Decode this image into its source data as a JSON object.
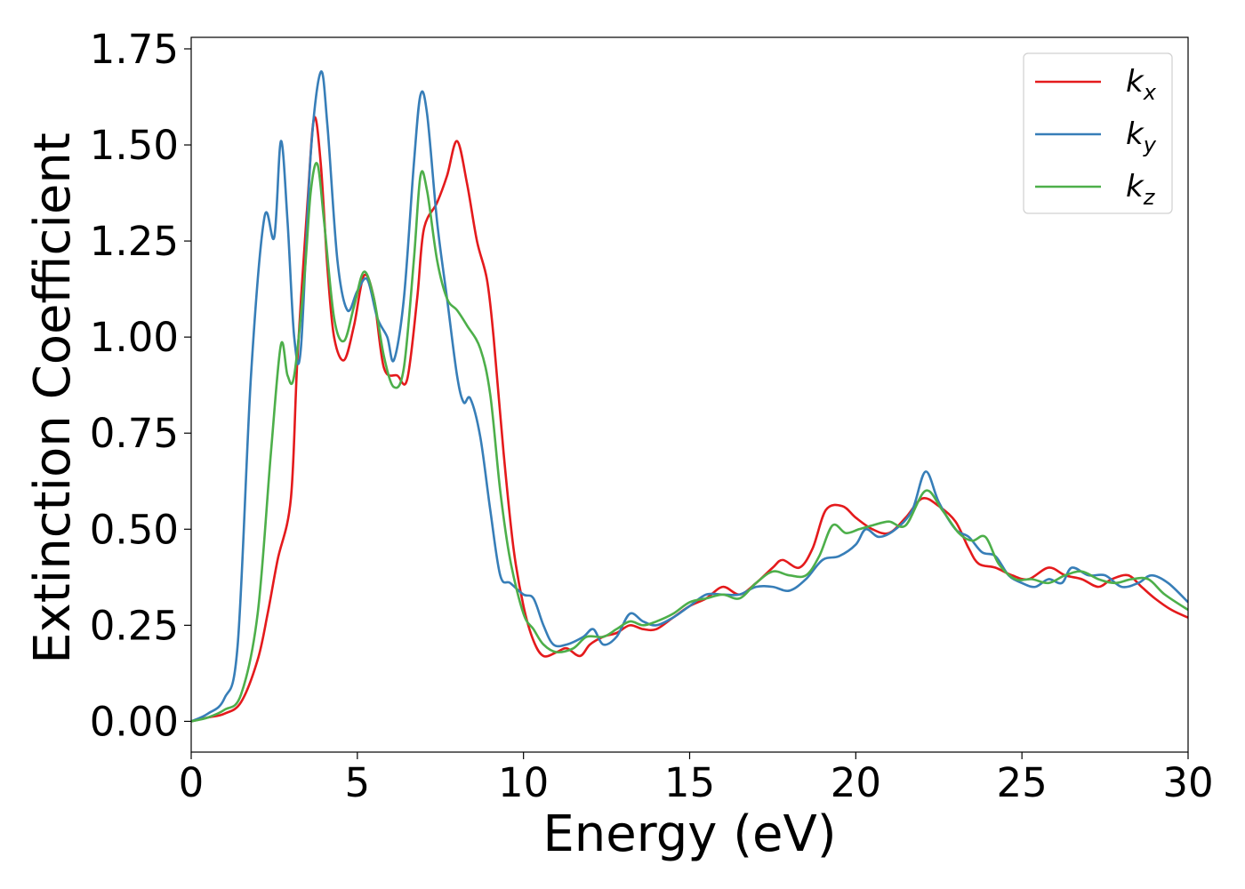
{
  "chart_data": {
    "type": "line",
    "xlabel": "Energy (eV)",
    "ylabel": "Extinction Coefficient",
    "xlim": [
      0,
      30
    ],
    "ylim": [
      -0.08,
      1.78
    ],
    "xticks": [
      0,
      5,
      10,
      15,
      20,
      25,
      30
    ],
    "xtick_labels": [
      "0",
      "5",
      "10",
      "15",
      "20",
      "25",
      "30"
    ],
    "yticks": [
      0,
      0.25,
      0.5,
      0.75,
      1.0,
      1.25,
      1.5,
      1.75
    ],
    "ytick_labels": [
      "0.00",
      "0.25",
      "0.50",
      "0.75",
      "1.00",
      "1.25",
      "1.50",
      "1.75"
    ],
    "grid": false,
    "legend_position": "top-right",
    "series": [
      {
        "name": "k",
        "subscript": "x",
        "color": "#e41a1c",
        "points": [
          [
            0,
            0
          ],
          [
            0.5,
            0.01
          ],
          [
            1.0,
            0.02
          ],
          [
            1.5,
            0.05
          ],
          [
            2.0,
            0.16
          ],
          [
            2.3,
            0.28
          ],
          [
            2.6,
            0.42
          ],
          [
            3.0,
            0.58
          ],
          [
            3.2,
            0.95
          ],
          [
            3.5,
            1.35
          ],
          [
            3.7,
            1.57
          ],
          [
            3.9,
            1.45
          ],
          [
            4.1,
            1.18
          ],
          [
            4.3,
            1.0
          ],
          [
            4.6,
            0.94
          ],
          [
            4.9,
            1.03
          ],
          [
            5.2,
            1.16
          ],
          [
            5.5,
            1.1
          ],
          [
            5.8,
            0.92
          ],
          [
            6.2,
            0.9
          ],
          [
            6.5,
            0.89
          ],
          [
            6.8,
            1.1
          ],
          [
            7.0,
            1.28
          ],
          [
            7.4,
            1.35
          ],
          [
            7.7,
            1.42
          ],
          [
            8.0,
            1.51
          ],
          [
            8.3,
            1.4
          ],
          [
            8.6,
            1.25
          ],
          [
            8.9,
            1.15
          ],
          [
            9.1,
            1.0
          ],
          [
            9.4,
            0.7
          ],
          [
            9.7,
            0.45
          ],
          [
            10.0,
            0.3
          ],
          [
            10.3,
            0.21
          ],
          [
            10.6,
            0.17
          ],
          [
            11.0,
            0.18
          ],
          [
            11.3,
            0.19
          ],
          [
            11.7,
            0.17
          ],
          [
            12.0,
            0.2
          ],
          [
            12.4,
            0.22
          ],
          [
            12.8,
            0.23
          ],
          [
            13.2,
            0.25
          ],
          [
            13.6,
            0.24
          ],
          [
            14.0,
            0.24
          ],
          [
            14.5,
            0.27
          ],
          [
            15.0,
            0.3
          ],
          [
            15.5,
            0.32
          ],
          [
            16.0,
            0.35
          ],
          [
            16.5,
            0.33
          ],
          [
            17.0,
            0.36
          ],
          [
            17.5,
            0.4
          ],
          [
            17.8,
            0.42
          ],
          [
            18.3,
            0.4
          ],
          [
            18.7,
            0.45
          ],
          [
            19.1,
            0.55
          ],
          [
            19.6,
            0.56
          ],
          [
            20.0,
            0.53
          ],
          [
            20.5,
            0.5
          ],
          [
            21.0,
            0.49
          ],
          [
            21.5,
            0.53
          ],
          [
            22.0,
            0.58
          ],
          [
            22.5,
            0.56
          ],
          [
            23.0,
            0.52
          ],
          [
            23.4,
            0.45
          ],
          [
            23.7,
            0.41
          ],
          [
            24.2,
            0.4
          ],
          [
            24.7,
            0.38
          ],
          [
            25.2,
            0.37
          ],
          [
            25.8,
            0.4
          ],
          [
            26.3,
            0.38
          ],
          [
            26.8,
            0.37
          ],
          [
            27.3,
            0.35
          ],
          [
            27.7,
            0.37
          ],
          [
            28.2,
            0.38
          ],
          [
            28.6,
            0.35
          ],
          [
            29.0,
            0.32
          ],
          [
            29.5,
            0.29
          ],
          [
            30.0,
            0.27
          ]
        ]
      },
      {
        "name": "k",
        "subscript": "y",
        "color": "#377eb8",
        "points": [
          [
            0,
            0
          ],
          [
            0.5,
            0.02
          ],
          [
            1.0,
            0.06
          ],
          [
            1.4,
            0.2
          ],
          [
            1.8,
            0.9
          ],
          [
            2.2,
            1.31
          ],
          [
            2.5,
            1.26
          ],
          [
            2.7,
            1.51
          ],
          [
            2.9,
            1.3
          ],
          [
            3.1,
            1.0
          ],
          [
            3.3,
            0.97
          ],
          [
            3.6,
            1.48
          ],
          [
            3.9,
            1.69
          ],
          [
            4.1,
            1.55
          ],
          [
            4.4,
            1.2
          ],
          [
            4.7,
            1.07
          ],
          [
            5.0,
            1.12
          ],
          [
            5.3,
            1.15
          ],
          [
            5.6,
            1.05
          ],
          [
            5.9,
            1.0
          ],
          [
            6.1,
            0.94
          ],
          [
            6.4,
            1.1
          ],
          [
            6.7,
            1.45
          ],
          [
            6.9,
            1.63
          ],
          [
            7.1,
            1.58
          ],
          [
            7.4,
            1.3
          ],
          [
            7.7,
            1.1
          ],
          [
            8.0,
            0.9
          ],
          [
            8.2,
            0.83
          ],
          [
            8.4,
            0.84
          ],
          [
            8.7,
            0.74
          ],
          [
            9.0,
            0.55
          ],
          [
            9.3,
            0.38
          ],
          [
            9.6,
            0.36
          ],
          [
            10.0,
            0.33
          ],
          [
            10.3,
            0.32
          ],
          [
            10.6,
            0.25
          ],
          [
            10.9,
            0.2
          ],
          [
            11.3,
            0.2
          ],
          [
            11.8,
            0.22
          ],
          [
            12.1,
            0.24
          ],
          [
            12.4,
            0.2
          ],
          [
            12.8,
            0.22
          ],
          [
            13.2,
            0.28
          ],
          [
            13.6,
            0.26
          ],
          [
            14.0,
            0.25
          ],
          [
            14.5,
            0.27
          ],
          [
            15.0,
            0.3
          ],
          [
            15.5,
            0.33
          ],
          [
            16.0,
            0.33
          ],
          [
            16.5,
            0.33
          ],
          [
            17.0,
            0.35
          ],
          [
            17.5,
            0.35
          ],
          [
            18.0,
            0.34
          ],
          [
            18.5,
            0.37
          ],
          [
            19.0,
            0.42
          ],
          [
            19.5,
            0.43
          ],
          [
            20.0,
            0.46
          ],
          [
            20.3,
            0.5
          ],
          [
            20.7,
            0.48
          ],
          [
            21.2,
            0.5
          ],
          [
            21.7,
            0.55
          ],
          [
            22.1,
            0.65
          ],
          [
            22.5,
            0.57
          ],
          [
            23.0,
            0.5
          ],
          [
            23.4,
            0.48
          ],
          [
            23.8,
            0.44
          ],
          [
            24.2,
            0.43
          ],
          [
            24.6,
            0.38
          ],
          [
            25.0,
            0.36
          ],
          [
            25.4,
            0.35
          ],
          [
            25.8,
            0.37
          ],
          [
            26.2,
            0.36
          ],
          [
            26.5,
            0.4
          ],
          [
            27.0,
            0.38
          ],
          [
            27.5,
            0.38
          ],
          [
            28.0,
            0.35
          ],
          [
            28.5,
            0.36
          ],
          [
            28.9,
            0.38
          ],
          [
            29.4,
            0.36
          ],
          [
            30.0,
            0.31
          ]
        ]
      },
      {
        "name": "k",
        "subscript": "z",
        "color": "#4daf4a",
        "points": [
          [
            0,
            0
          ],
          [
            0.5,
            0.01
          ],
          [
            1.0,
            0.03
          ],
          [
            1.5,
            0.07
          ],
          [
            2.0,
            0.28
          ],
          [
            2.4,
            0.7
          ],
          [
            2.7,
            0.98
          ],
          [
            2.9,
            0.9
          ],
          [
            3.1,
            0.9
          ],
          [
            3.4,
            1.15
          ],
          [
            3.6,
            1.38
          ],
          [
            3.8,
            1.45
          ],
          [
            4.0,
            1.3
          ],
          [
            4.3,
            1.05
          ],
          [
            4.6,
            0.99
          ],
          [
            4.9,
            1.08
          ],
          [
            5.2,
            1.17
          ],
          [
            5.5,
            1.1
          ],
          [
            5.8,
            0.95
          ],
          [
            6.1,
            0.87
          ],
          [
            6.4,
            0.92
          ],
          [
            6.7,
            1.2
          ],
          [
            6.9,
            1.42
          ],
          [
            7.1,
            1.38
          ],
          [
            7.4,
            1.2
          ],
          [
            7.7,
            1.1
          ],
          [
            8.0,
            1.07
          ],
          [
            8.3,
            1.03
          ],
          [
            8.7,
            0.97
          ],
          [
            9.0,
            0.85
          ],
          [
            9.3,
            0.6
          ],
          [
            9.6,
            0.42
          ],
          [
            10.0,
            0.28
          ],
          [
            10.3,
            0.24
          ],
          [
            10.6,
            0.2
          ],
          [
            11.0,
            0.18
          ],
          [
            11.5,
            0.19
          ],
          [
            11.9,
            0.22
          ],
          [
            12.4,
            0.22
          ],
          [
            12.8,
            0.24
          ],
          [
            13.2,
            0.26
          ],
          [
            13.6,
            0.25
          ],
          [
            14.0,
            0.26
          ],
          [
            14.5,
            0.28
          ],
          [
            15.0,
            0.31
          ],
          [
            15.5,
            0.32
          ],
          [
            16.0,
            0.33
          ],
          [
            16.5,
            0.32
          ],
          [
            17.0,
            0.36
          ],
          [
            17.5,
            0.39
          ],
          [
            18.0,
            0.38
          ],
          [
            18.5,
            0.38
          ],
          [
            18.9,
            0.43
          ],
          [
            19.3,
            0.51
          ],
          [
            19.7,
            0.49
          ],
          [
            20.1,
            0.5
          ],
          [
            20.5,
            0.51
          ],
          [
            21.0,
            0.52
          ],
          [
            21.5,
            0.51
          ],
          [
            22.1,
            0.6
          ],
          [
            22.6,
            0.55
          ],
          [
            23.1,
            0.49
          ],
          [
            23.5,
            0.47
          ],
          [
            23.9,
            0.48
          ],
          [
            24.3,
            0.41
          ],
          [
            24.8,
            0.37
          ],
          [
            25.3,
            0.37
          ],
          [
            25.8,
            0.36
          ],
          [
            26.3,
            0.38
          ],
          [
            26.8,
            0.39
          ],
          [
            27.3,
            0.37
          ],
          [
            27.8,
            0.36
          ],
          [
            28.3,
            0.37
          ],
          [
            28.8,
            0.37
          ],
          [
            29.3,
            0.33
          ],
          [
            30.0,
            0.29
          ]
        ]
      }
    ]
  }
}
